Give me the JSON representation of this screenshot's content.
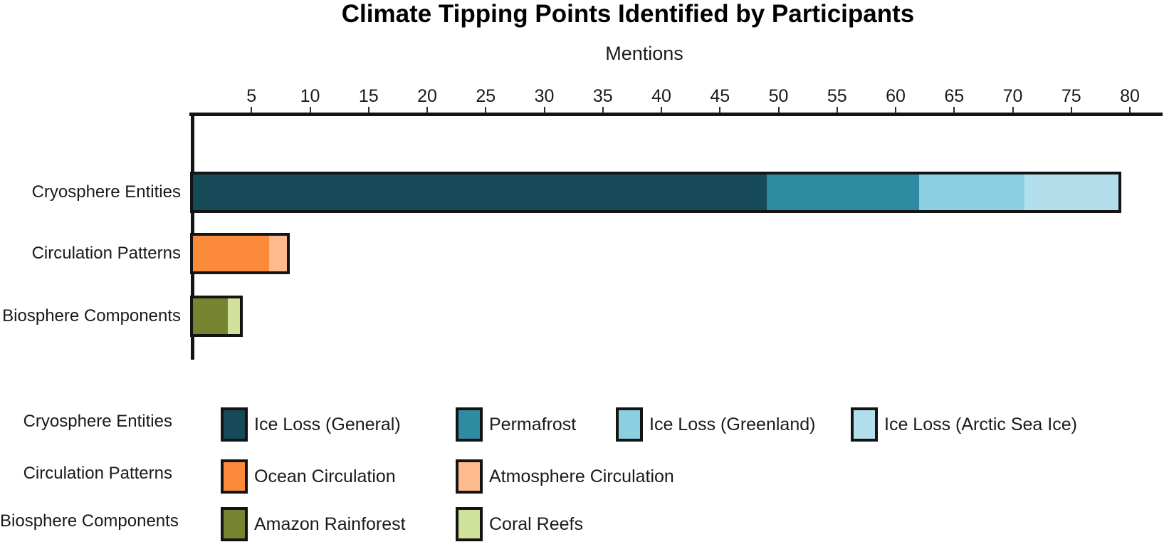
{
  "title": "Climate Tipping Points Identified by Participants",
  "chart_data": {
    "type": "bar",
    "orientation": "horizontal",
    "stacked": true,
    "title": "Climate Tipping Points Identified by Participants",
    "xlabel": "Mentions",
    "ylabel": "",
    "xlim": [
      0,
      83
    ],
    "x_ticks": [
      5,
      10,
      15,
      20,
      25,
      30,
      35,
      40,
      45,
      50,
      55,
      60,
      65,
      70,
      75,
      80
    ],
    "grid": false,
    "legend_position": "bottom",
    "categories": [
      "Cryosphere Entities",
      "Circulation Patterns",
      "Biosphere Components"
    ],
    "groups": [
      {
        "category": "Cryosphere Entities",
        "total": 79,
        "segments": [
          {
            "label": "Ice Loss (General)",
            "value": 49,
            "color": "#174a58"
          },
          {
            "label": "Permafrost",
            "value": 13,
            "color": "#2f8ba1"
          },
          {
            "label": "Ice Loss (Greenland)",
            "value": 9,
            "color": "#8ccfe0"
          },
          {
            "label": "Ice Loss (Arctic Sea Ice)",
            "value": 8,
            "color": "#b3dfec"
          }
        ]
      },
      {
        "category": "Circulation Patterns",
        "total": 8,
        "segments": [
          {
            "label": "Ocean Circulation",
            "value": 6.5,
            "color": "#fb8b3b"
          },
          {
            "label": "Atmosphere Circulation",
            "value": 1.5,
            "color": "#fdba8e"
          }
        ]
      },
      {
        "category": "Biosphere Components",
        "total": 4,
        "segments": [
          {
            "label": "Amazon Rainforest",
            "value": 3,
            "color": "#76832f"
          },
          {
            "label": "Coral Reefs",
            "value": 1,
            "color": "#cfe19b"
          }
        ]
      }
    ],
    "axis_color": "#141414",
    "bar_outline_color": "#141414"
  }
}
